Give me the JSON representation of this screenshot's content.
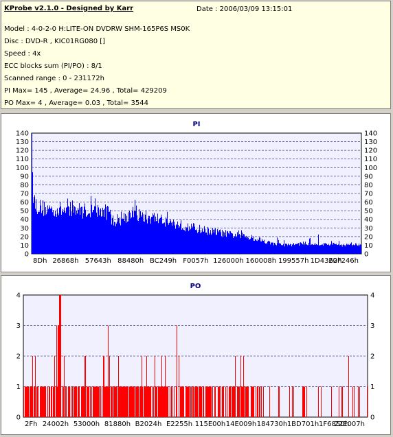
{
  "header": {
    "app_title": "KProbe v2.1.0 - Designed by Karr",
    "date": "Date : 2006/03/09 13:15:01",
    "lines": [
      "Model : 4-0-2-0 H:LITE-ON DVDRW SHM-165P6S MS0K",
      "Disc : DVD-R , KIC01RG080   []",
      "Speed : 4x",
      "ECC blocks sum (PI/PO) : 8/1",
      "Scanned range : 0 - 231172h",
      "PI Max= 145 , Average= 24.96 , Total= 429209",
      "PO Max= 4 , Average= 0.03 , Total= 3544"
    ]
  },
  "colors": {
    "pi": "#0000ff",
    "po": "#ff0000",
    "plot_bg": "#f0f0ff",
    "grid": "#4a4a8a"
  },
  "chart_data": [
    {
      "type": "area",
      "title": "PI",
      "ylim": [
        0,
        140
      ],
      "yticks": [
        0,
        10,
        20,
        30,
        40,
        50,
        60,
        70,
        80,
        90,
        100,
        110,
        120,
        130,
        140
      ],
      "xlim": [
        0,
        231172
      ],
      "xtick_labels": [
        "8Dh",
        "26868h",
        "57643h",
        "88480h",
        "BC249h",
        "F0057h",
        "126000h",
        "160008h",
        "199557h",
        "1D4362h",
        "20F246h"
      ],
      "grid": true,
      "profile": {
        "x": [
          0,
          200,
          600,
          1500,
          3000,
          6000,
          12000,
          20000,
          30000,
          40000,
          50000,
          55000,
          56000,
          60000,
          70000,
          76000,
          80000,
          90000,
          100000,
          110000,
          120000,
          130000,
          140000,
          150000,
          160000,
          170000,
          180000,
          190000,
          200000,
          210000,
          220000,
          231172
        ],
        "y": [
          145,
          130,
          90,
          70,
          62,
          58,
          56,
          55,
          55,
          54,
          53,
          52,
          42,
          42,
          50,
          48,
          46,
          44,
          38,
          34,
          30,
          27,
          24,
          22,
          18,
          12,
          11,
          13,
          12,
          12,
          11,
          12
        ]
      }
    },
    {
      "type": "bar",
      "title": "PO",
      "ylim": [
        0,
        4
      ],
      "yticks": [
        0,
        1,
        2,
        3,
        4
      ],
      "xlim": [
        0,
        231172
      ],
      "xtick_labels": [
        "2Fh",
        "24002h",
        "53000h",
        "81880h",
        "B2024h",
        "E2255h",
        "115E00h",
        "14E009h",
        "184730h",
        "1BD701h",
        "1F6850h",
        "22E007h"
      ],
      "grid": true,
      "max_value": 4,
      "max_at": [
        24000,
        25500
      ],
      "peaks_3": [
        22500,
        23500,
        57000,
        103000
      ],
      "peaks_2_density": 0.6
    }
  ]
}
